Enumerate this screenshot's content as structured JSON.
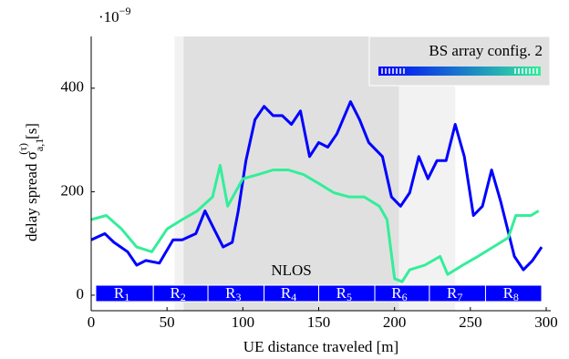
{
  "chart_data": {
    "type": "line",
    "y_exponent": "·10",
    "y_exponent_power": "−9",
    "y_label": "delay spread σ",
    "y_label_sup": "(τ)",
    "y_label_sub": "a,1",
    "y_label_unit": "[s]",
    "x_label": "UE distance traveled [m]",
    "xlim": [
      0,
      300
    ],
    "ylim": [
      -30,
      500
    ],
    "xticks": [
      0,
      50,
      100,
      150,
      200,
      250,
      300
    ],
    "yticks": [
      0,
      200,
      400
    ],
    "grid": false,
    "legend": {
      "title": "BS array config. 2",
      "location": "upper right",
      "gradient": [
        "#0000ff",
        "#33ee99"
      ]
    },
    "shaded_regions": [
      {
        "start": 55,
        "end": 61,
        "color": "#f2f2f2"
      },
      {
        "start": 61,
        "end": 203,
        "color": "#e0e0e0",
        "label": "NLOS"
      },
      {
        "start": 203,
        "end": 240,
        "color": "#f2f2f2"
      }
    ],
    "route_segments": [
      {
        "label": "R",
        "sub": "1",
        "start": 3,
        "end": 41
      },
      {
        "label": "R",
        "sub": "2",
        "start": 41,
        "end": 77
      },
      {
        "label": "R",
        "sub": "3",
        "start": 77,
        "end": 114
      },
      {
        "label": "R",
        "sub": "4",
        "start": 114,
        "end": 150
      },
      {
        "label": "R",
        "sub": "5",
        "start": 150,
        "end": 187
      },
      {
        "label": "R",
        "sub": "6",
        "start": 187,
        "end": 223
      },
      {
        "label": "R",
        "sub": "7",
        "start": 223,
        "end": 260
      },
      {
        "label": "R",
        "sub": "8",
        "start": 260,
        "end": 297
      }
    ],
    "segment_color": "#0000ff",
    "series": [
      {
        "color": "#0000ff",
        "x": [
          0,
          9,
          15,
          24,
          30,
          36,
          45,
          54,
          60,
          69,
          75,
          81,
          87,
          93,
          97,
          102,
          108,
          114,
          120,
          126,
          132,
          138,
          144,
          150,
          156,
          162,
          171,
          177,
          183,
          192,
          198,
          204,
          210,
          216,
          222,
          228,
          234,
          240,
          246,
          252,
          258,
          264,
          270,
          279,
          285,
          291,
          297
        ],
        "values": [
          107,
          119,
          102,
          84,
          58,
          67,
          62,
          107,
          107,
          119,
          163,
          128,
          93,
          102,
          163,
          260,
          339,
          365,
          347,
          347,
          330,
          356,
          268,
          295,
          286,
          312,
          374,
          339,
          295,
          268,
          190,
          172,
          198,
          268,
          225,
          260,
          260,
          330,
          268,
          154,
          172,
          242,
          181,
          75,
          49,
          67,
          93
        ]
      },
      {
        "color": "#33ee99",
        "x": [
          0,
          10,
          20,
          30,
          40,
          50,
          60,
          70,
          80,
          85,
          90,
          100,
          110,
          120,
          130,
          140,
          150,
          160,
          170,
          180,
          190,
          195,
          200,
          205,
          210,
          220,
          230,
          235,
          245,
          255,
          265,
          275,
          280,
          290,
          295
        ],
        "values": [
          146,
          154,
          128,
          93,
          84,
          128,
          146,
          163,
          190,
          251,
          172,
          225,
          233,
          242,
          242,
          233,
          216,
          198,
          190,
          190,
          172,
          146,
          32,
          26,
          49,
          58,
          75,
          40,
          58,
          75,
          93,
          111,
          154,
          154,
          163
        ]
      }
    ]
  }
}
